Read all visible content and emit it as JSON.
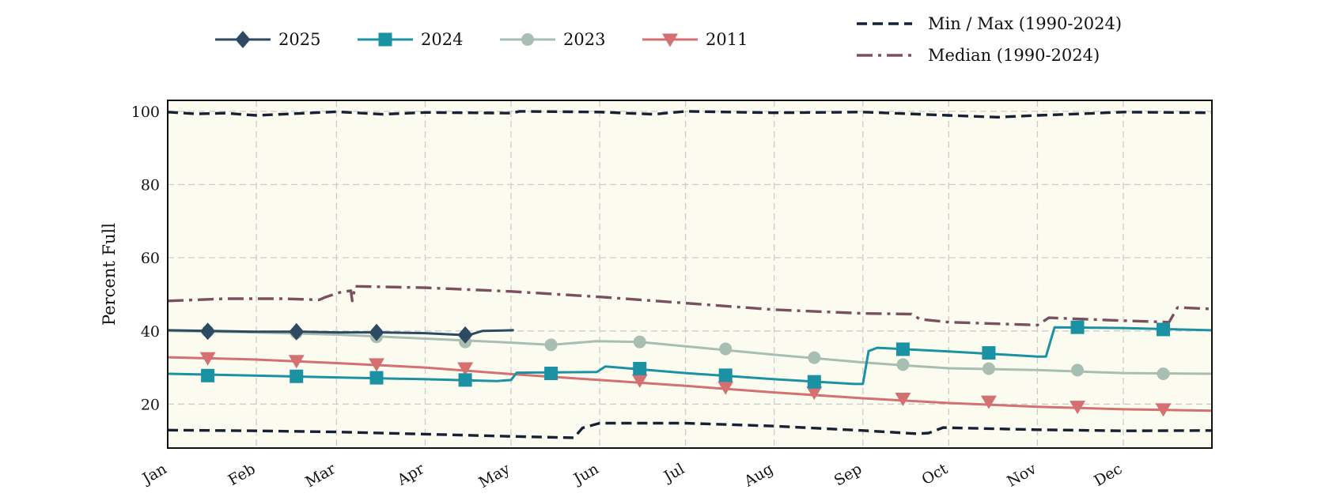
{
  "chart_data": {
    "type": "line",
    "title": "",
    "xlabel": "",
    "ylabel": "Percent Full",
    "ylim": [
      8,
      103
    ],
    "xlim": [
      0,
      365
    ],
    "yticks": [
      20,
      40,
      60,
      80,
      100
    ],
    "grid": true,
    "legend_placement": "top",
    "x_categories": [
      "Jan",
      "Feb",
      "Mar",
      "Apr",
      "May",
      "Jun",
      "Jul",
      "Aug",
      "Sep",
      "Oct",
      "Nov",
      "Dec"
    ],
    "x_tick_days": [
      0,
      31,
      59,
      90,
      120,
      151,
      181,
      212,
      243,
      273,
      304,
      334
    ],
    "series": [
      {
        "name": "2025",
        "color": "#2e4a62",
        "linestyle": "solid",
        "marker": "diamond",
        "points": [
          [
            0,
            40.2
          ],
          [
            15,
            40.0
          ],
          [
            30,
            39.8
          ],
          [
            45,
            39.8
          ],
          [
            59,
            39.6
          ],
          [
            74,
            39.6
          ],
          [
            90,
            39.4
          ],
          [
            100,
            39.0
          ],
          [
            105,
            38.8
          ],
          [
            110,
            40.0
          ],
          [
            121,
            40.2
          ]
        ],
        "marker_days": [
          14,
          45,
          73,
          104
        ],
        "marker_values": [
          39.9,
          39.8,
          39.6,
          38.9
        ]
      },
      {
        "name": "2024",
        "color": "#1b92a3",
        "linestyle": "solid",
        "marker": "square",
        "points": [
          [
            0,
            28.3
          ],
          [
            30,
            27.8
          ],
          [
            59,
            27.3
          ],
          [
            90,
            26.8
          ],
          [
            115,
            26.3
          ],
          [
            120,
            26.6
          ],
          [
            122,
            28.6
          ],
          [
            150,
            28.8
          ],
          [
            153,
            30.3
          ],
          [
            181,
            28.5
          ],
          [
            212,
            26.8
          ],
          [
            240,
            25.5
          ],
          [
            243,
            25.5
          ],
          [
            245,
            34.5
          ],
          [
            248,
            35.4
          ],
          [
            273,
            34.4
          ],
          [
            304,
            33.0
          ],
          [
            307,
            33.0
          ],
          [
            310,
            41.0
          ],
          [
            334,
            40.8
          ],
          [
            365,
            40.2
          ]
        ],
        "marker_days": [
          14,
          45,
          73,
          104,
          134,
          165,
          195,
          226,
          257,
          287,
          318,
          348
        ],
        "marker_values": [
          27.8,
          27.6,
          27.2,
          26.6,
          28.4,
          29.7,
          27.9,
          26.1,
          35.0,
          34.0,
          41.0,
          40.4
        ]
      },
      {
        "name": "2023",
        "color": "#a8beb2",
        "linestyle": "solid",
        "marker": "circle",
        "points": [
          [
            0,
            40.0
          ],
          [
            30,
            39.6
          ],
          [
            59,
            39.0
          ],
          [
            90,
            37.9
          ],
          [
            120,
            36.8
          ],
          [
            134,
            36.2
          ],
          [
            150,
            37.2
          ],
          [
            165,
            37.0
          ],
          [
            181,
            35.8
          ],
          [
            212,
            33.5
          ],
          [
            243,
            31.4
          ],
          [
            257,
            30.6
          ],
          [
            273,
            29.8
          ],
          [
            304,
            29.3
          ],
          [
            334,
            28.5
          ],
          [
            365,
            28.3
          ]
        ],
        "marker_days": [
          14,
          45,
          73,
          104,
          134,
          165,
          195,
          226,
          257,
          287,
          318,
          348
        ],
        "marker_values": [
          39.9,
          39.5,
          38.4,
          37.0,
          36.2,
          37.0,
          35.1,
          32.7,
          30.8,
          29.7,
          29.3,
          28.3
        ]
      },
      {
        "name": "2011",
        "color": "#d47072",
        "linestyle": "solid",
        "marker": "triangle-down",
        "points": [
          [
            0,
            32.8
          ],
          [
            30,
            32.2
          ],
          [
            59,
            31.2
          ],
          [
            90,
            30.0
          ],
          [
            120,
            28.2
          ],
          [
            151,
            26.6
          ],
          [
            181,
            25.0
          ],
          [
            212,
            23.2
          ],
          [
            243,
            21.6
          ],
          [
            273,
            20.3
          ],
          [
            304,
            19.3
          ],
          [
            334,
            18.6
          ],
          [
            365,
            18.2
          ]
        ],
        "marker_days": [
          14,
          45,
          73,
          104,
          165,
          195,
          226,
          257,
          287,
          318,
          348
        ],
        "marker_values": [
          32.6,
          31.8,
          30.9,
          29.8,
          26.5,
          24.6,
          23.2,
          21.5,
          20.7,
          19.3,
          18.6
        ]
      },
      {
        "name": "Min / Max (1990-2024)",
        "color": "#152233",
        "linestyle": "dashed",
        "marker": "none",
        "lines": [
          [
            [
              0,
              99.8
            ],
            [
              10,
              99.3
            ],
            [
              20,
              99.5
            ],
            [
              31,
              98.9
            ],
            [
              45,
              99.4
            ],
            [
              59,
              99.9
            ],
            [
              75,
              99.2
            ],
            [
              90,
              99.7
            ],
            [
              105,
              99.6
            ],
            [
              120,
              99.5
            ],
            [
              123,
              100.0
            ],
            [
              151,
              99.8
            ],
            [
              170,
              99.2
            ],
            [
              181,
              100.0
            ],
            [
              212,
              99.6
            ],
            [
              243,
              99.8
            ],
            [
              273,
              98.9
            ],
            [
              290,
              98.4
            ],
            [
              304,
              98.9
            ],
            [
              315,
              99.2
            ],
            [
              334,
              99.8
            ],
            [
              365,
              99.6
            ]
          ],
          [
            [
              0,
              12.9
            ],
            [
              31,
              12.7
            ],
            [
              59,
              12.4
            ],
            [
              90,
              11.8
            ],
            [
              120,
              11.2
            ],
            [
              142,
              10.8
            ],
            [
              145,
              13.5
            ],
            [
              151,
              14.8
            ],
            [
              181,
              14.8
            ],
            [
              212,
              14.0
            ],
            [
              243,
              12.8
            ],
            [
              262,
              11.9
            ],
            [
              266,
              12.1
            ],
            [
              271,
              13.6
            ],
            [
              304,
              13.0
            ],
            [
              334,
              12.7
            ],
            [
              365,
              12.8
            ]
          ]
        ]
      },
      {
        "name": "Median (1990-2024)",
        "color": "#7a5060",
        "linestyle": "dashdot",
        "marker": "none",
        "points": [
          [
            0,
            48.2
          ],
          [
            20,
            48.8
          ],
          [
            40,
            48.8
          ],
          [
            53,
            48.5
          ],
          [
            55,
            49.2
          ],
          [
            60,
            50.5
          ],
          [
            64,
            51.0
          ],
          [
            64.5,
            48.2
          ],
          [
            65.5,
            52.2
          ],
          [
            90,
            51.8
          ],
          [
            120,
            50.8
          ],
          [
            151,
            49.3
          ],
          [
            181,
            47.6
          ],
          [
            212,
            45.8
          ],
          [
            243,
            44.8
          ],
          [
            260,
            44.6
          ],
          [
            263,
            43.2
          ],
          [
            273,
            42.4
          ],
          [
            304,
            41.6
          ],
          [
            308,
            43.6
          ],
          [
            334,
            42.8
          ],
          [
            350,
            42.4
          ],
          [
            353,
            46.4
          ],
          [
            365,
            46.0
          ]
        ]
      }
    ],
    "legend": {
      "entries": [
        "2025",
        "2024",
        "2023",
        "2011",
        "Min / Max (1990-2024)",
        "Median (1990-2024)"
      ]
    }
  }
}
